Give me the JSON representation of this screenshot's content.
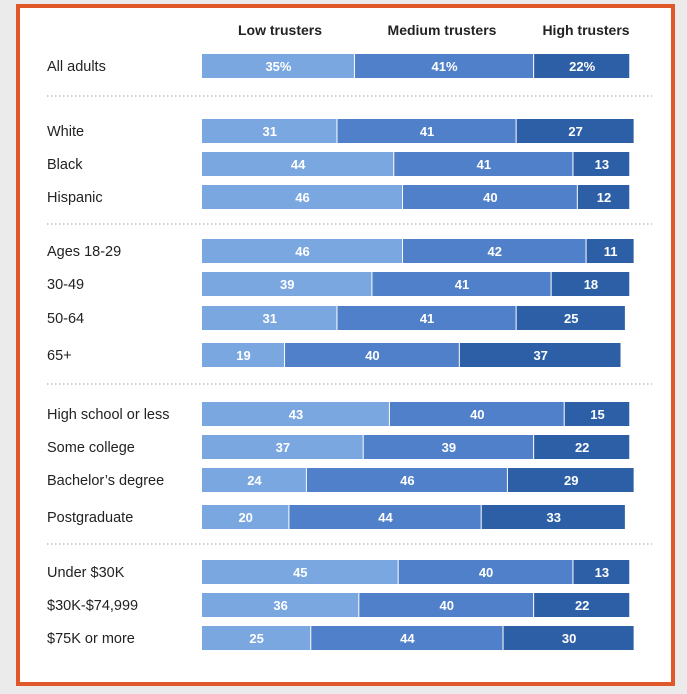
{
  "chart_data": {
    "type": "bar",
    "orientation": "horizontal",
    "stacked": true,
    "title": "",
    "xlabel": "",
    "ylabel": "",
    "xlim": [
      0,
      100
    ],
    "grid": false,
    "series": [
      {
        "name": "Low trusters",
        "color": "#7aa7e0"
      },
      {
        "name": "Medium trusters",
        "color": "#4f80c9"
      },
      {
        "name": "High trusters",
        "color": "#2d5fa6"
      }
    ],
    "groups": [
      {
        "rows": [
          {
            "label": "All adults",
            "values": [
              35,
              41,
              22
            ],
            "value_labels": [
              "35%",
              "41%",
              "22%"
            ]
          }
        ]
      },
      {
        "rows": [
          {
            "label": "White",
            "values": [
              31,
              41,
              27
            ],
            "value_labels": [
              "31",
              "41",
              "27"
            ]
          },
          {
            "label": "Black",
            "values": [
              44,
              41,
              13
            ],
            "value_labels": [
              "44",
              "41",
              "13"
            ]
          },
          {
            "label": "Hispanic",
            "values": [
              46,
              40,
              12
            ],
            "value_labels": [
              "46",
              "40",
              "12"
            ]
          }
        ]
      },
      {
        "rows": [
          {
            "label": "Ages 18-29",
            "values": [
              46,
              42,
              11
            ],
            "value_labels": [
              "46",
              "42",
              "11"
            ]
          },
          {
            "label": "30-49",
            "values": [
              39,
              41,
              18
            ],
            "value_labels": [
              "39",
              "41",
              "18"
            ]
          },
          {
            "label": "50-64",
            "values": [
              31,
              41,
              25
            ],
            "value_labels": [
              "31",
              "41",
              "25"
            ]
          },
          {
            "label": "65+",
            "values": [
              19,
              40,
              37
            ],
            "value_labels": [
              "19",
              "40",
              "37"
            ]
          }
        ]
      },
      {
        "rows": [
          {
            "label": "High school or less",
            "values": [
              43,
              40,
              15
            ],
            "value_labels": [
              "43",
              "40",
              "15"
            ]
          },
          {
            "label": "Some college",
            "values": [
              37,
              39,
              22
            ],
            "value_labels": [
              "37",
              "39",
              "22"
            ]
          },
          {
            "label": "Bachelor’s degree",
            "values": [
              24,
              46,
              29
            ],
            "value_labels": [
              "24",
              "46",
              "29"
            ]
          },
          {
            "label": "Postgraduate",
            "values": [
              20,
              44,
              33
            ],
            "value_labels": [
              "20",
              "44",
              "33"
            ]
          }
        ]
      },
      {
        "rows": [
          {
            "label": "Under $30K",
            "values": [
              45,
              40,
              13
            ],
            "value_labels": [
              "45",
              "40",
              "13"
            ]
          },
          {
            "label": "$30K-$74,999",
            "values": [
              36,
              40,
              22
            ],
            "value_labels": [
              "36",
              "40",
              "22"
            ]
          },
          {
            "label": "$75K or more",
            "values": [
              25,
              44,
              30
            ],
            "value_labels": [
              "25",
              "44",
              "30"
            ]
          }
        ]
      }
    ]
  }
}
